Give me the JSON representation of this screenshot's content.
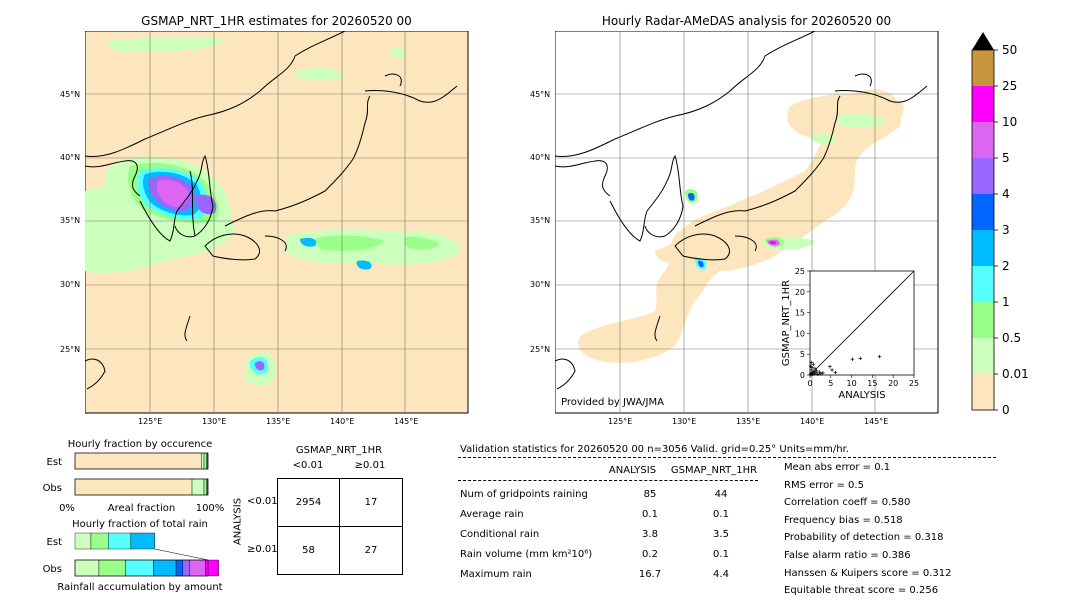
{
  "map_left": {
    "title": "GSMAP_NRT_1HR estimates for 20260520 00",
    "lat_labels": [
      "45°N",
      "40°N",
      "35°N",
      "30°N",
      "25°N"
    ],
    "lon_labels": [
      "125°E",
      "130°E",
      "135°E",
      "140°E",
      "145°E"
    ]
  },
  "map_right": {
    "title": "Hourly Radar-AMeDAS analysis for 20260520 00",
    "lat_labels": [
      "45°N",
      "40°N",
      "35°N",
      "30°N",
      "25°N"
    ],
    "lon_labels": [
      "125°E",
      "130°E",
      "135°E",
      "140°E",
      "145°E"
    ],
    "credit": "Provided by JWA/JMA"
  },
  "colorbar": {
    "labels": [
      "50",
      "25",
      "10",
      "5",
      "4",
      "3",
      "2",
      "1",
      "0.5",
      "0.01",
      "0"
    ],
    "colors": [
      "#c8963c",
      "#ff00ff",
      "#dd66f0",
      "#9966ff",
      "#0066ff",
      "#00bbff",
      "#55ffff",
      "#99ff88",
      "#ccffbb",
      "#fde6bd"
    ]
  },
  "chart_data": [
    {
      "type": "scatter",
      "title": "",
      "xlabel": "ANALYSIS",
      "ylabel": "GSMAP_NRT_1HR",
      "xlim": [
        0,
        25
      ],
      "ylim": [
        0,
        25
      ],
      "xticks": [
        "0",
        "5",
        "10",
        "15",
        "20",
        "25"
      ],
      "yticks": [
        "0",
        "5",
        "10",
        "15",
        "20",
        "25"
      ],
      "points": [
        [
          0.1,
          0.1
        ],
        [
          0.2,
          0.3
        ],
        [
          0.3,
          0.1
        ],
        [
          0.5,
          0.6
        ],
        [
          0.4,
          1.2
        ],
        [
          0.7,
          0.2
        ],
        [
          0.9,
          0.8
        ],
        [
          1.1,
          0.3
        ],
        [
          1.4,
          0.5
        ],
        [
          1.6,
          1.0
        ],
        [
          1.9,
          0.2
        ],
        [
          2.3,
          0.7
        ],
        [
          2.6,
          0.3
        ],
        [
          3.1,
          0.5
        ],
        [
          0.2,
          2.1
        ],
        [
          0.5,
          1.8
        ],
        [
          0.8,
          2.6
        ],
        [
          1.2,
          1.5
        ],
        [
          0.3,
          3.0
        ],
        [
          4.8,
          2.0
        ],
        [
          5.3,
          1.2
        ],
        [
          6.1,
          0.6
        ],
        [
          10.2,
          3.8
        ],
        [
          12.1,
          4.0
        ],
        [
          16.7,
          4.4
        ]
      ]
    },
    {
      "type": "bar",
      "title": "Hourly fraction by occurence",
      "rows": [
        "Est",
        "Obs"
      ],
      "xticks": [
        "0%",
        "Areal fraction",
        "100%"
      ],
      "series": [
        {
          "values": [
            0.95,
            0.88
          ]
        },
        {
          "values": [
            0.02,
            0.09
          ]
        },
        {
          "values": [
            0.02,
            0.02
          ]
        },
        {
          "values": [
            0.01,
            0.01
          ]
        }
      ]
    },
    {
      "type": "bar",
      "title": "Hourly fraction of total rain",
      "rows": [
        "Est",
        "Obs"
      ],
      "xlabel": "Rainfall accumulation by amount",
      "series": [
        {
          "values": [
            0.12,
            0.18
          ]
        },
        {
          "values": [
            0.13,
            0.2
          ]
        },
        {
          "values": [
            0.17,
            0.21
          ]
        },
        {
          "values": [
            0.18,
            0.17
          ]
        },
        {
          "values": [
            0.0,
            0.05
          ]
        },
        {
          "values": [
            0.0,
            0.05
          ]
        },
        {
          "values": [
            0.0,
            0.12
          ]
        },
        {
          "values": [
            0.0,
            0.1
          ]
        }
      ]
    }
  ],
  "contingency": {
    "title": "GSMAP_NRT_1HR",
    "col_labels": [
      "<0.01",
      "≥0.01"
    ],
    "row_labels": [
      "<0.01",
      "≥0.01"
    ],
    "row_axis": "ANALYSIS",
    "cells": [
      [
        "2954",
        "17"
      ],
      [
        "58",
        "27"
      ]
    ]
  },
  "validation": {
    "header": "Validation statistics for 20260520 00  n=3056 Valid. grid=0.25° Units=mm/hr.",
    "col_analysis": "ANALYSIS",
    "col_gsmap": "GSMAP_NRT_1HR",
    "rows": [
      {
        "label": "Num of gridpoints raining",
        "analysis": "85",
        "gsmap": "44"
      },
      {
        "label": "Average rain",
        "analysis": "0.1",
        "gsmap": "0.1"
      },
      {
        "label": "Conditional rain",
        "analysis": "3.8",
        "gsmap": "3.5"
      },
      {
        "label": "Rain volume (mm km²10⁶)",
        "analysis": "0.2",
        "gsmap": "0.1"
      },
      {
        "label": "Maximum rain",
        "analysis": "16.7",
        "gsmap": "4.4"
      }
    ],
    "scores": [
      "Mean abs error =    0.1",
      "RMS error =    0.5",
      "Correlation coeff =  0.580",
      "Frequency bias =  0.518",
      "Probability of detection =  0.318",
      "False alarm ratio =  0.386",
      "Hanssen & Kuipers score =  0.312",
      "Equitable threat score =  0.256"
    ]
  }
}
